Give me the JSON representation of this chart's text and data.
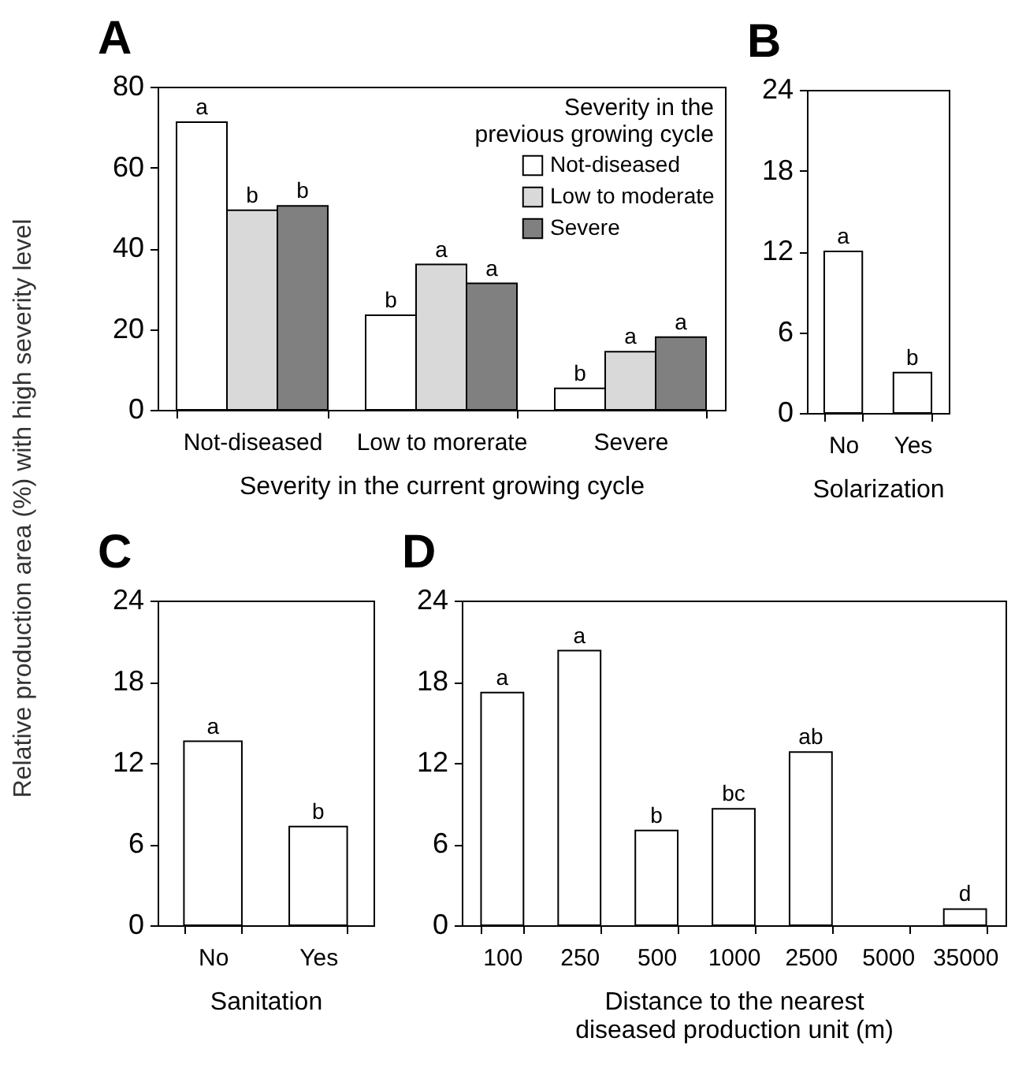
{
  "chart_data": [
    {
      "type": "bar",
      "title": "A",
      "ylabel": "Relative production area (%) with high severity level",
      "xlabel": "Severity in the current growing cycle",
      "legend_title": "Severity in the previous growing cycle",
      "legend": "top right",
      "categories": [
        "Not-diseased",
        "Low to morerate",
        "Severe"
      ],
      "ylim": [
        0,
        80
      ],
      "yticks": [
        0,
        20,
        40,
        60,
        80
      ],
      "series": [
        {
          "name": "Not-diseased",
          "color": "#ffffff",
          "values": [
            71.2,
            23.4,
            5.3
          ],
          "value_labels": [
            "a",
            "b",
            "b"
          ]
        },
        {
          "name": "Low to moderate",
          "color": "#d9d9d9",
          "values": [
            49.4,
            36,
            14.4
          ],
          "value_labels": [
            "b",
            "a",
            "a"
          ]
        },
        {
          "name": "Severe",
          "color": "#808080",
          "values": [
            50.5,
            31.3,
            18
          ],
          "value_labels": [
            "b",
            "a",
            "a"
          ]
        }
      ]
    },
    {
      "type": "bar",
      "title": "B",
      "xlabel": "Solarization",
      "categories": [
        "No",
        "Yes"
      ],
      "ylim": [
        0,
        24
      ],
      "yticks": [
        0,
        6,
        12,
        18,
        24
      ],
      "series": [
        {
          "color": "#ffffff",
          "values": [
            12,
            3
          ],
          "value_labels": [
            "a",
            "b"
          ]
        }
      ]
    },
    {
      "type": "bar",
      "title": "C",
      "xlabel": "Sanitation",
      "categories": [
        "No",
        "Yes"
      ],
      "ylim": [
        0,
        24
      ],
      "yticks": [
        0,
        6,
        12,
        18,
        24
      ],
      "series": [
        {
          "color": "#ffffff",
          "values": [
            13.6,
            7.3
          ],
          "value_labels": [
            "a",
            "b"
          ]
        }
      ]
    },
    {
      "type": "bar",
      "title": "D",
      "xlabel": "Distance to the nearest diseased production unit (m)",
      "categories": [
        "100",
        "250",
        "500",
        "1000",
        "2500",
        "5000",
        "35000"
      ],
      "ylim": [
        0,
        24
      ],
      "yticks": [
        0,
        6,
        12,
        18,
        24
      ],
      "series": [
        {
          "color": "#ffffff",
          "values": [
            17.2,
            20.3,
            7,
            8.6,
            12.8,
            null,
            1.2
          ],
          "value_labels": [
            "a",
            "a",
            "b",
            "bc",
            "ab",
            null,
            "d"
          ]
        }
      ]
    }
  ]
}
